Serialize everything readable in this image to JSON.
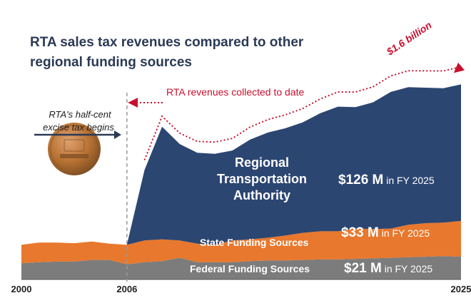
{
  "colors": {
    "rta": "#2c4672",
    "state": "#e8782d",
    "federal": "#7c7c7c",
    "accent_red": "#c8102e",
    "penny": "#b87333"
  },
  "chart_data": {
    "type": "area",
    "stacked": true,
    "title": "RTA sales tax revenues compared to other regional funding sources",
    "x": [
      2000,
      2001,
      2002,
      2003,
      2004,
      2005,
      2006,
      2007,
      2008,
      2009,
      2010,
      2011,
      2012,
      2013,
      2014,
      2015,
      2016,
      2017,
      2018,
      2019,
      2020,
      2021,
      2022,
      2023,
      2024,
      2025
    ],
    "xticks": [
      "2000",
      "2006",
      "2025"
    ],
    "xlim": [
      2000,
      2025
    ],
    "ylim": [
      0,
      250
    ],
    "series": [
      {
        "name": "Federal Funding Sources",
        "values": [
          15,
          16,
          16.5,
          16.5,
          18,
          18,
          14,
          16,
          17,
          20,
          16,
          16,
          16,
          17,
          17.5,
          17.5,
          18,
          18.5,
          18.5,
          19,
          19.5,
          20,
          20.5,
          21,
          21.5,
          21
        ]
      },
      {
        "name": "State Funding Sources",
        "values": [
          17,
          18,
          17.5,
          17,
          17,
          15,
          18,
          20,
          20,
          16,
          17,
          16,
          20,
          20,
          21,
          23,
          25,
          26,
          26,
          28,
          27,
          27,
          30,
          31,
          31,
          33
        ]
      },
      {
        "name": "Regional Transportation Authority",
        "values": [
          0,
          0,
          0,
          0,
          0,
          0,
          0,
          65,
          104,
          89,
          84,
          84,
          83,
          92,
          97,
          99,
          102,
          109,
          115,
          112,
          117,
          126,
          127,
          125,
          124,
          126
        ]
      }
    ],
    "labels": {
      "rta_name": [
        "Regional",
        "Transportation",
        "Authority"
      ],
      "rta_value": "$126 M",
      "state_name": "State Funding Sources",
      "state_value": "$33 M",
      "federal_name": "Federal Funding Sources",
      "federal_value": "$21 M",
      "fy_suffix": " in FY 2025"
    },
    "annotations": {
      "collected": "RTA revenues collected to date",
      "total": "$1.6 billion",
      "tax_begins": [
        "RTA's half-cent",
        "excise tax begins"
      ],
      "tax_year": 2006
    }
  }
}
